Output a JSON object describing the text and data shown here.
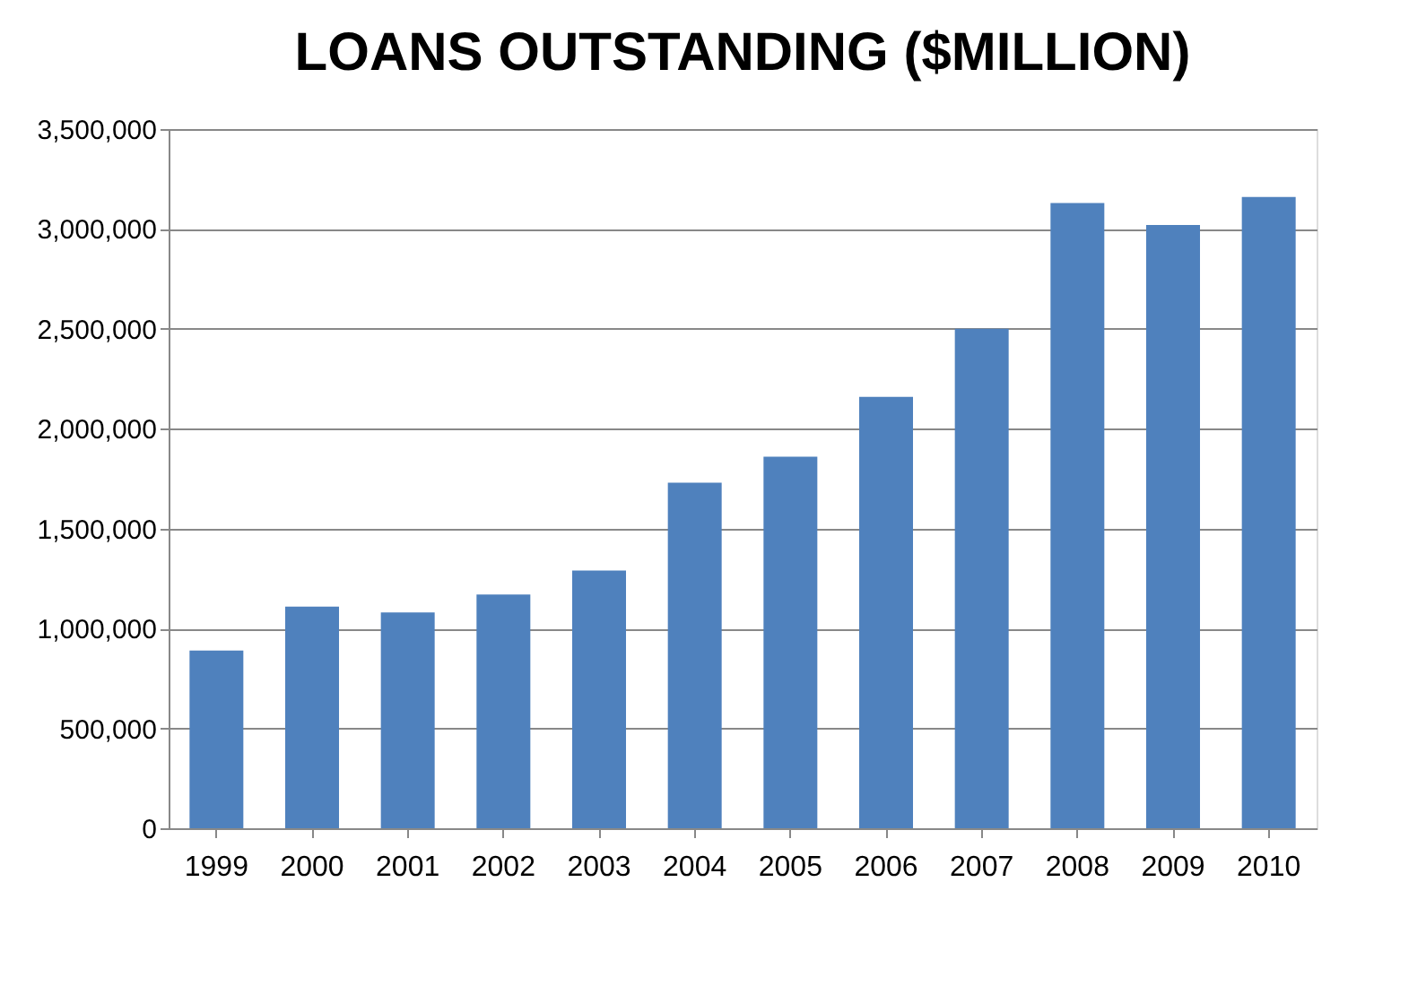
{
  "chart_data": {
    "type": "bar",
    "title": "LOANS OUTSTANDING  ($MILLION)",
    "categories": [
      "1999",
      "2000",
      "2001",
      "2002",
      "2003",
      "2004",
      "2005",
      "2006",
      "2007",
      "2008",
      "2009",
      "2010"
    ],
    "values": [
      890000,
      1110000,
      1080000,
      1170000,
      1290000,
      1730000,
      1860000,
      2160000,
      2500000,
      3130000,
      3020000,
      3160000
    ],
    "color": "#4f81bd",
    "ylim": [
      0,
      3500000
    ],
    "yticks": [
      0,
      {
        "value": 500000,
        "label": "500,000"
      },
      {
        "value": 1000000,
        "label": "1,000,000"
      },
      {
        "value": 1500000,
        "label": "1,500,000"
      },
      {
        "value": 2000000,
        "label": "2,000,000"
      },
      {
        "value": 2500000,
        "label": "2,500,000"
      },
      {
        "value": 3000000,
        "label": "3,000,000"
      },
      {
        "value": 3500000,
        "label": "3,500,000"
      }
    ],
    "grid": "y"
  }
}
